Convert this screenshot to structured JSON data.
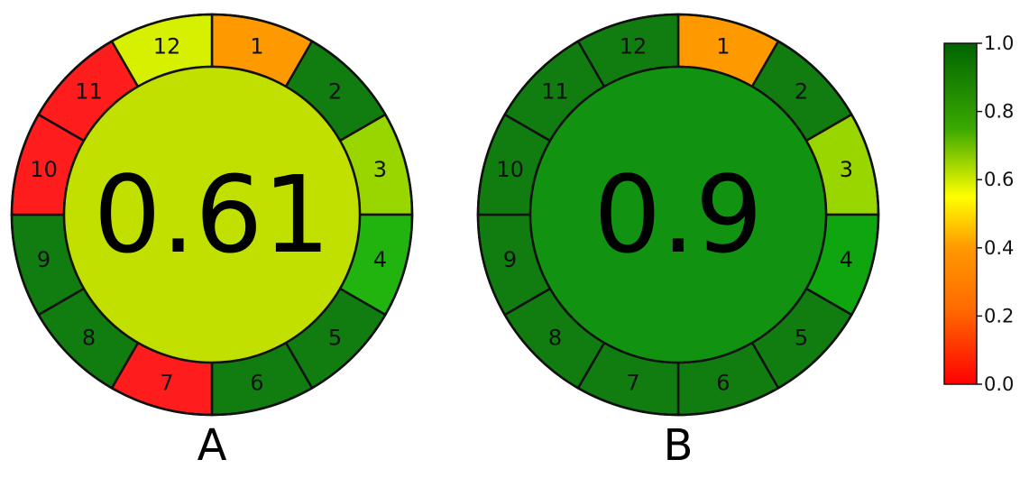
{
  "chart_data": [
    {
      "type": "pie",
      "panel_label": "A",
      "score": "0.61",
      "score_value": 0.61,
      "segment_labels": [
        "1",
        "2",
        "3",
        "4",
        "5",
        "6",
        "7",
        "8",
        "9",
        "10",
        "11",
        "12"
      ],
      "segment_values": [
        0.4,
        0.9,
        0.7,
        0.85,
        0.9,
        0.9,
        0.0,
        0.9,
        0.9,
        0.0,
        0.0,
        0.55
      ],
      "colors": {
        "center": "#c2e000",
        "segments": [
          "#ff9900",
          "#117d11",
          "#99d600",
          "#22b40e",
          "#117d11",
          "#117d11",
          "#ff1c1c",
          "#117d11",
          "#117d11",
          "#ff1c1c",
          "#ff1c1c",
          "#d6f000"
        ]
      }
    },
    {
      "type": "pie",
      "panel_label": "B",
      "score": "0.9",
      "score_value": 0.9,
      "segment_labels": [
        "1",
        "2",
        "3",
        "4",
        "5",
        "6",
        "7",
        "8",
        "9",
        "10",
        "11",
        "12"
      ],
      "segment_values": [
        0.4,
        0.9,
        0.7,
        0.85,
        0.9,
        0.9,
        0.9,
        0.9,
        0.9,
        0.9,
        0.9,
        0.9
      ],
      "colors": {
        "center": "#119311",
        "segments": [
          "#ff9900",
          "#117d11",
          "#99d600",
          "#0fa50f",
          "#117d11",
          "#117d11",
          "#117d11",
          "#117d11",
          "#117d11",
          "#117d11",
          "#117d11",
          "#117d11"
        ]
      }
    }
  ],
  "colorbar": {
    "ticks": [
      "0.0",
      "0.2",
      "0.4",
      "0.6",
      "0.8",
      "1.0"
    ],
    "range": [
      0,
      1
    ],
    "colors": [
      "#ff0000",
      "#ff9900",
      "#ffff00",
      "#009900",
      "#006400"
    ]
  }
}
